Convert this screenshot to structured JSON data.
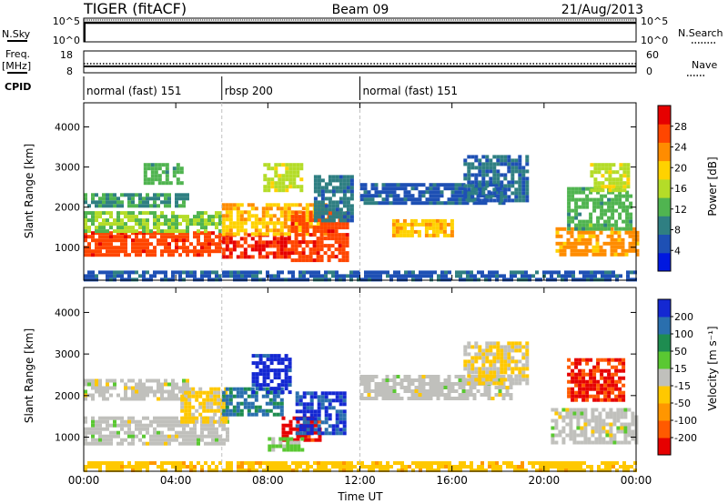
{
  "header": {
    "left": "TIGER (fitACF)",
    "center": "Beam 09",
    "right": "21/Aug/2013"
  },
  "summary": {
    "nsky_label": "N.Sky",
    "nsky_ticks": [
      "10^5",
      "10^0"
    ],
    "nsearch_label": "N.Search",
    "nsearch_ticks": [
      "10^5",
      "10^0"
    ],
    "freq_label": "Freq.",
    "freq_unit": "[MHz]",
    "freq_ticks": [
      "18",
      "8"
    ],
    "nave_label": "Nave",
    "nave_ticks": [
      "60",
      "0"
    ],
    "cpid_label": "CPID",
    "cpid_segments": [
      {
        "label": "normal (fast) 151",
        "start_h": 0,
        "end_h": 6
      },
      {
        "label": "rbsp 200",
        "start_h": 6,
        "end_h": 12
      },
      {
        "label": "normal (fast) 151",
        "start_h": 12,
        "end_h": 24
      }
    ]
  },
  "chart_data": [
    {
      "type": "heatmap",
      "title": "",
      "xlabel": "",
      "ylabel": "Slant Range [km]",
      "xlim_hours": [
        0,
        24
      ],
      "ylim": [
        180,
        4600
      ],
      "yticks": [
        "1000",
        "2000",
        "3000",
        "4000"
      ],
      "colorbar_label": "Power [dB]",
      "colorbar_ticks": [
        "4",
        "8",
        "12",
        "16",
        "20",
        "24",
        "28"
      ],
      "colorbar_range": [
        0,
        31
      ],
      "colorbar_colors": [
        "#0018e0",
        "#1e50b4",
        "#2f7f82",
        "#50b450",
        "#b4dc28",
        "#ffd200",
        "#ff8c00",
        "#ff4600",
        "#e60000"
      ],
      "regions": [
        {
          "t0": 0.0,
          "t1": 6.0,
          "r0": 850,
          "r1": 1400,
          "value": 26
        },
        {
          "t0": 0.0,
          "t1": 6.0,
          "r0": 1400,
          "r1": 1900,
          "value": 14
        },
        {
          "t0": 0.0,
          "t1": 4.5,
          "r0": 2050,
          "r1": 2350,
          "value": 10
        },
        {
          "t0": 2.6,
          "t1": 4.3,
          "r0": 2600,
          "r1": 3100,
          "value": 12
        },
        {
          "t0": 6.0,
          "t1": 9.0,
          "r0": 750,
          "r1": 1350,
          "value": 28
        },
        {
          "t0": 6.0,
          "t1": 10.5,
          "r0": 1300,
          "r1": 2100,
          "value": 20
        },
        {
          "t0": 7.8,
          "t1": 9.4,
          "r0": 2400,
          "r1": 3100,
          "value": 16
        },
        {
          "t0": 9.0,
          "t1": 11.4,
          "r0": 700,
          "r1": 1900,
          "value": 26
        },
        {
          "t0": 10.0,
          "t1": 11.6,
          "r0": 1700,
          "r1": 2800,
          "value": 8
        },
        {
          "t0": 12.0,
          "t1": 18.3,
          "r0": 2100,
          "r1": 2600,
          "value": 6
        },
        {
          "t0": 13.4,
          "t1": 16.0,
          "r0": 1300,
          "r1": 1700,
          "value": 20
        },
        {
          "t0": 16.5,
          "t1": 19.3,
          "r0": 2200,
          "r1": 3300,
          "value": 7
        },
        {
          "t0": 20.5,
          "t1": 24.0,
          "r0": 850,
          "r1": 1500,
          "value": 22
        },
        {
          "t0": 21.0,
          "t1": 23.8,
          "r0": 1500,
          "r1": 2500,
          "value": 12
        },
        {
          "t0": 22.0,
          "t1": 23.7,
          "r0": 2400,
          "r1": 3100,
          "value": 16
        },
        {
          "t0": 0.0,
          "t1": 24.0,
          "r0": 200,
          "r1": 420,
          "value": 6
        }
      ]
    },
    {
      "type": "heatmap",
      "title": "",
      "xlabel": "Time UT",
      "ylabel": "Slant Range [km]",
      "xlim_hours": [
        0,
        24
      ],
      "ylim": [
        180,
        4600
      ],
      "xticks": [
        "00:00",
        "04:00",
        "08:00",
        "12:00",
        "16:00",
        "20:00",
        "00:00"
      ],
      "yticks": [
        "1000",
        "2000",
        "3000",
        "4000"
      ],
      "colorbar_label": "Velocity [m s⁻¹]",
      "colorbar_ticks": [
        "200",
        "100",
        "50",
        "15",
        "-15",
        "-50",
        "-100",
        "-200"
      ],
      "colorbar_range": [
        -250,
        250
      ],
      "colorbar_colors": [
        "#e60000",
        "#ff5a00",
        "#ff9600",
        "#ffc800",
        "#c0c0bc",
        "#5ac832",
        "#1e8c50",
        "#2a6fae",
        "#1428d2"
      ],
      "regions": [
        {
          "t0": 0.0,
          "t1": 6.2,
          "r0": 850,
          "r1": 1500,
          "value": 0
        },
        {
          "t0": 0.0,
          "t1": 4.5,
          "r0": 1900,
          "r1": 2400,
          "value": 0
        },
        {
          "t0": 4.2,
          "t1": 6.2,
          "r0": 1400,
          "r1": 2200,
          "value": -40
        },
        {
          "t0": 6.0,
          "t1": 8.6,
          "r0": 1500,
          "r1": 2200,
          "value": 150
        },
        {
          "t0": 7.3,
          "t1": 9.0,
          "r0": 2100,
          "r1": 3000,
          "value": 220
        },
        {
          "t0": 8.6,
          "t1": 10.3,
          "r0": 900,
          "r1": 1500,
          "value": -220
        },
        {
          "t0": 9.2,
          "t1": 11.4,
          "r0": 1100,
          "r1": 2100,
          "value": 200
        },
        {
          "t0": 8.0,
          "t1": 9.5,
          "r0": 700,
          "r1": 1000,
          "value": 40
        },
        {
          "t0": 12.0,
          "t1": 18.5,
          "r0": 1900,
          "r1": 2500,
          "value": 0
        },
        {
          "t0": 16.5,
          "t1": 19.3,
          "r0": 2300,
          "r1": 3300,
          "value": -30
        },
        {
          "t0": 20.3,
          "t1": 24.0,
          "r0": 900,
          "r1": 1700,
          "value": 0
        },
        {
          "t0": 21.0,
          "t1": 23.5,
          "r0": 1900,
          "r1": 2900,
          "value": -200
        },
        {
          "t0": 0.0,
          "t1": 24.0,
          "r0": 200,
          "r1": 420,
          "value": -60
        }
      ]
    }
  ],
  "colors": {
    "frame": "#000000",
    "divider": "#c0c0c0"
  }
}
